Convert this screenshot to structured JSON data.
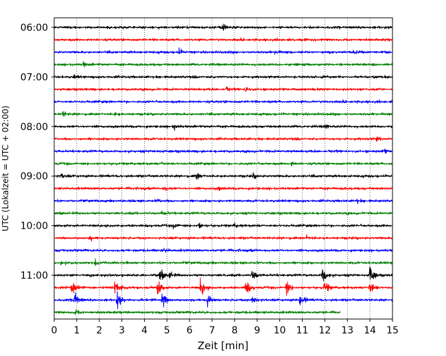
{
  "chart_data": {
    "type": "line",
    "title": "",
    "xlabel": "Zeit  [min]",
    "ylabel": "UTC (Lokalzeit = UTC + 02:00)",
    "xlim": [
      0,
      15
    ],
    "x_ticks": [
      0,
      1,
      2,
      3,
      4,
      5,
      6,
      7,
      8,
      9,
      10,
      11,
      12,
      13,
      14,
      15
    ],
    "y_tick_labels": [
      "06:00",
      "07:00",
      "08:00",
      "09:00",
      "10:00",
      "11:00"
    ],
    "grid": "vertical dotted lines at each minute",
    "trace_colors": [
      "#000000",
      "#ff0000",
      "#0000ff",
      "#008000"
    ],
    "traces": [
      {
        "start": "06:00",
        "color": "#000000",
        "end_min": 15,
        "events": [
          {
            "t": 7.5,
            "a": 0.6
          }
        ]
      },
      {
        "start": "06:15",
        "color": "#ff0000",
        "end_min": 15,
        "events": []
      },
      {
        "start": "06:30",
        "color": "#0000ff",
        "end_min": 15,
        "events": [
          {
            "t": 5.5,
            "a": 0.8
          },
          {
            "t": 9.8,
            "a": 0.4
          },
          {
            "t": 13.3,
            "a": 0.4
          }
        ]
      },
      {
        "start": "06:45",
        "color": "#008000",
        "end_min": 15,
        "events": [
          {
            "t": 1.3,
            "a": 0.5
          }
        ]
      },
      {
        "start": "07:00",
        "color": "#000000",
        "end_min": 15,
        "events": [
          {
            "t": 0.9,
            "a": 0.4
          }
        ]
      },
      {
        "start": "07:15",
        "color": "#ff0000",
        "end_min": 15,
        "events": [
          {
            "t": 7.6,
            "a": 0.5
          },
          {
            "t": 8.5,
            "a": 0.7
          }
        ]
      },
      {
        "start": "07:30",
        "color": "#0000ff",
        "end_min": 15,
        "events": []
      },
      {
        "start": "07:45",
        "color": "#008000",
        "end_min": 15,
        "events": [
          {
            "t": 0.4,
            "a": 0.6
          },
          {
            "t": 2.7,
            "a": 0.4
          }
        ]
      },
      {
        "start": "08:00",
        "color": "#000000",
        "end_min": 15,
        "events": [
          {
            "t": 5.3,
            "a": 0.7
          },
          {
            "t": 12.0,
            "a": 0.5
          }
        ]
      },
      {
        "start": "08:15",
        "color": "#ff0000",
        "end_min": 15,
        "events": [
          {
            "t": 14.3,
            "a": 0.6
          }
        ]
      },
      {
        "start": "08:30",
        "color": "#0000ff",
        "end_min": 15,
        "events": [
          {
            "t": 4.5,
            "a": 0.4
          },
          {
            "t": 14.6,
            "a": 0.5
          }
        ]
      },
      {
        "start": "08:45",
        "color": "#008000",
        "end_min": 15,
        "events": [
          {
            "t": 4.8,
            "a": 0.5
          },
          {
            "t": 10.5,
            "a": 0.5
          }
        ]
      },
      {
        "start": "09:00",
        "color": "#000000",
        "end_min": 15,
        "events": [
          {
            "t": 0.3,
            "a": 0.5
          },
          {
            "t": 6.3,
            "a": 1.0
          },
          {
            "t": 8.8,
            "a": 0.6
          }
        ]
      },
      {
        "start": "09:15",
        "color": "#ff0000",
        "end_min": 15,
        "events": [
          {
            "t": 4.9,
            "a": 0.6
          },
          {
            "t": 7.3,
            "a": 0.4
          }
        ]
      },
      {
        "start": "09:30",
        "color": "#0000ff",
        "end_min": 15,
        "events": [
          {
            "t": 4.6,
            "a": 0.4
          },
          {
            "t": 13.4,
            "a": 0.5
          }
        ]
      },
      {
        "start": "09:45",
        "color": "#008000",
        "end_min": 15,
        "events": [
          {
            "t": 4.8,
            "a": 0.5
          }
        ]
      },
      {
        "start": "10:00",
        "color": "#000000",
        "end_min": 15,
        "events": [
          {
            "t": 5.3,
            "a": 0.8
          },
          {
            "t": 6.4,
            "a": 0.8
          },
          {
            "t": 8.0,
            "a": 0.4
          }
        ]
      },
      {
        "start": "10:15",
        "color": "#ff0000",
        "end_min": 15,
        "events": [
          {
            "t": 1.6,
            "a": 0.5
          },
          {
            "t": 11.2,
            "a": 0.6
          }
        ]
      },
      {
        "start": "10:30",
        "color": "#0000ff",
        "end_min": 15,
        "events": [
          {
            "t": 4.9,
            "a": 0.4
          }
        ]
      },
      {
        "start": "10:45",
        "color": "#008000",
        "end_min": 15,
        "events": [
          {
            "t": 0.3,
            "a": 0.6
          },
          {
            "t": 1.8,
            "a": 0.7
          }
        ]
      },
      {
        "start": "11:00",
        "color": "#000000",
        "end_min": 15,
        "events": [
          {
            "t": 4.7,
            "a": 1.4
          },
          {
            "t": 5.1,
            "a": 1.0
          },
          {
            "t": 8.8,
            "a": 1.9
          },
          {
            "t": 11.9,
            "a": 2.4
          },
          {
            "t": 14.0,
            "a": 2.8
          }
        ]
      },
      {
        "start": "11:15",
        "color": "#ff0000",
        "end_min": 15,
        "events": [
          {
            "t": 0.8,
            "a": 2.2
          },
          {
            "t": 2.7,
            "a": 2.0
          },
          {
            "t": 4.6,
            "a": 2.6
          },
          {
            "t": 6.5,
            "a": 2.5
          },
          {
            "t": 8.5,
            "a": 2.3
          },
          {
            "t": 10.3,
            "a": 2.0
          },
          {
            "t": 12.0,
            "a": 1.8
          },
          {
            "t": 14.0,
            "a": 2.6
          }
        ]
      },
      {
        "start": "11:30",
        "color": "#0000ff",
        "end_min": 15,
        "events": [
          {
            "t": 0.9,
            "a": 2.2
          },
          {
            "t": 2.8,
            "a": 1.9
          },
          {
            "t": 4.8,
            "a": 2.4
          },
          {
            "t": 6.8,
            "a": 1.7
          },
          {
            "t": 8.8,
            "a": 1.6
          },
          {
            "t": 10.9,
            "a": 1.9
          }
        ]
      },
      {
        "start": "11:45",
        "color": "#008000",
        "end_min": 12.7,
        "events": [
          {
            "t": 0.9,
            "a": 0.6
          }
        ]
      }
    ]
  }
}
